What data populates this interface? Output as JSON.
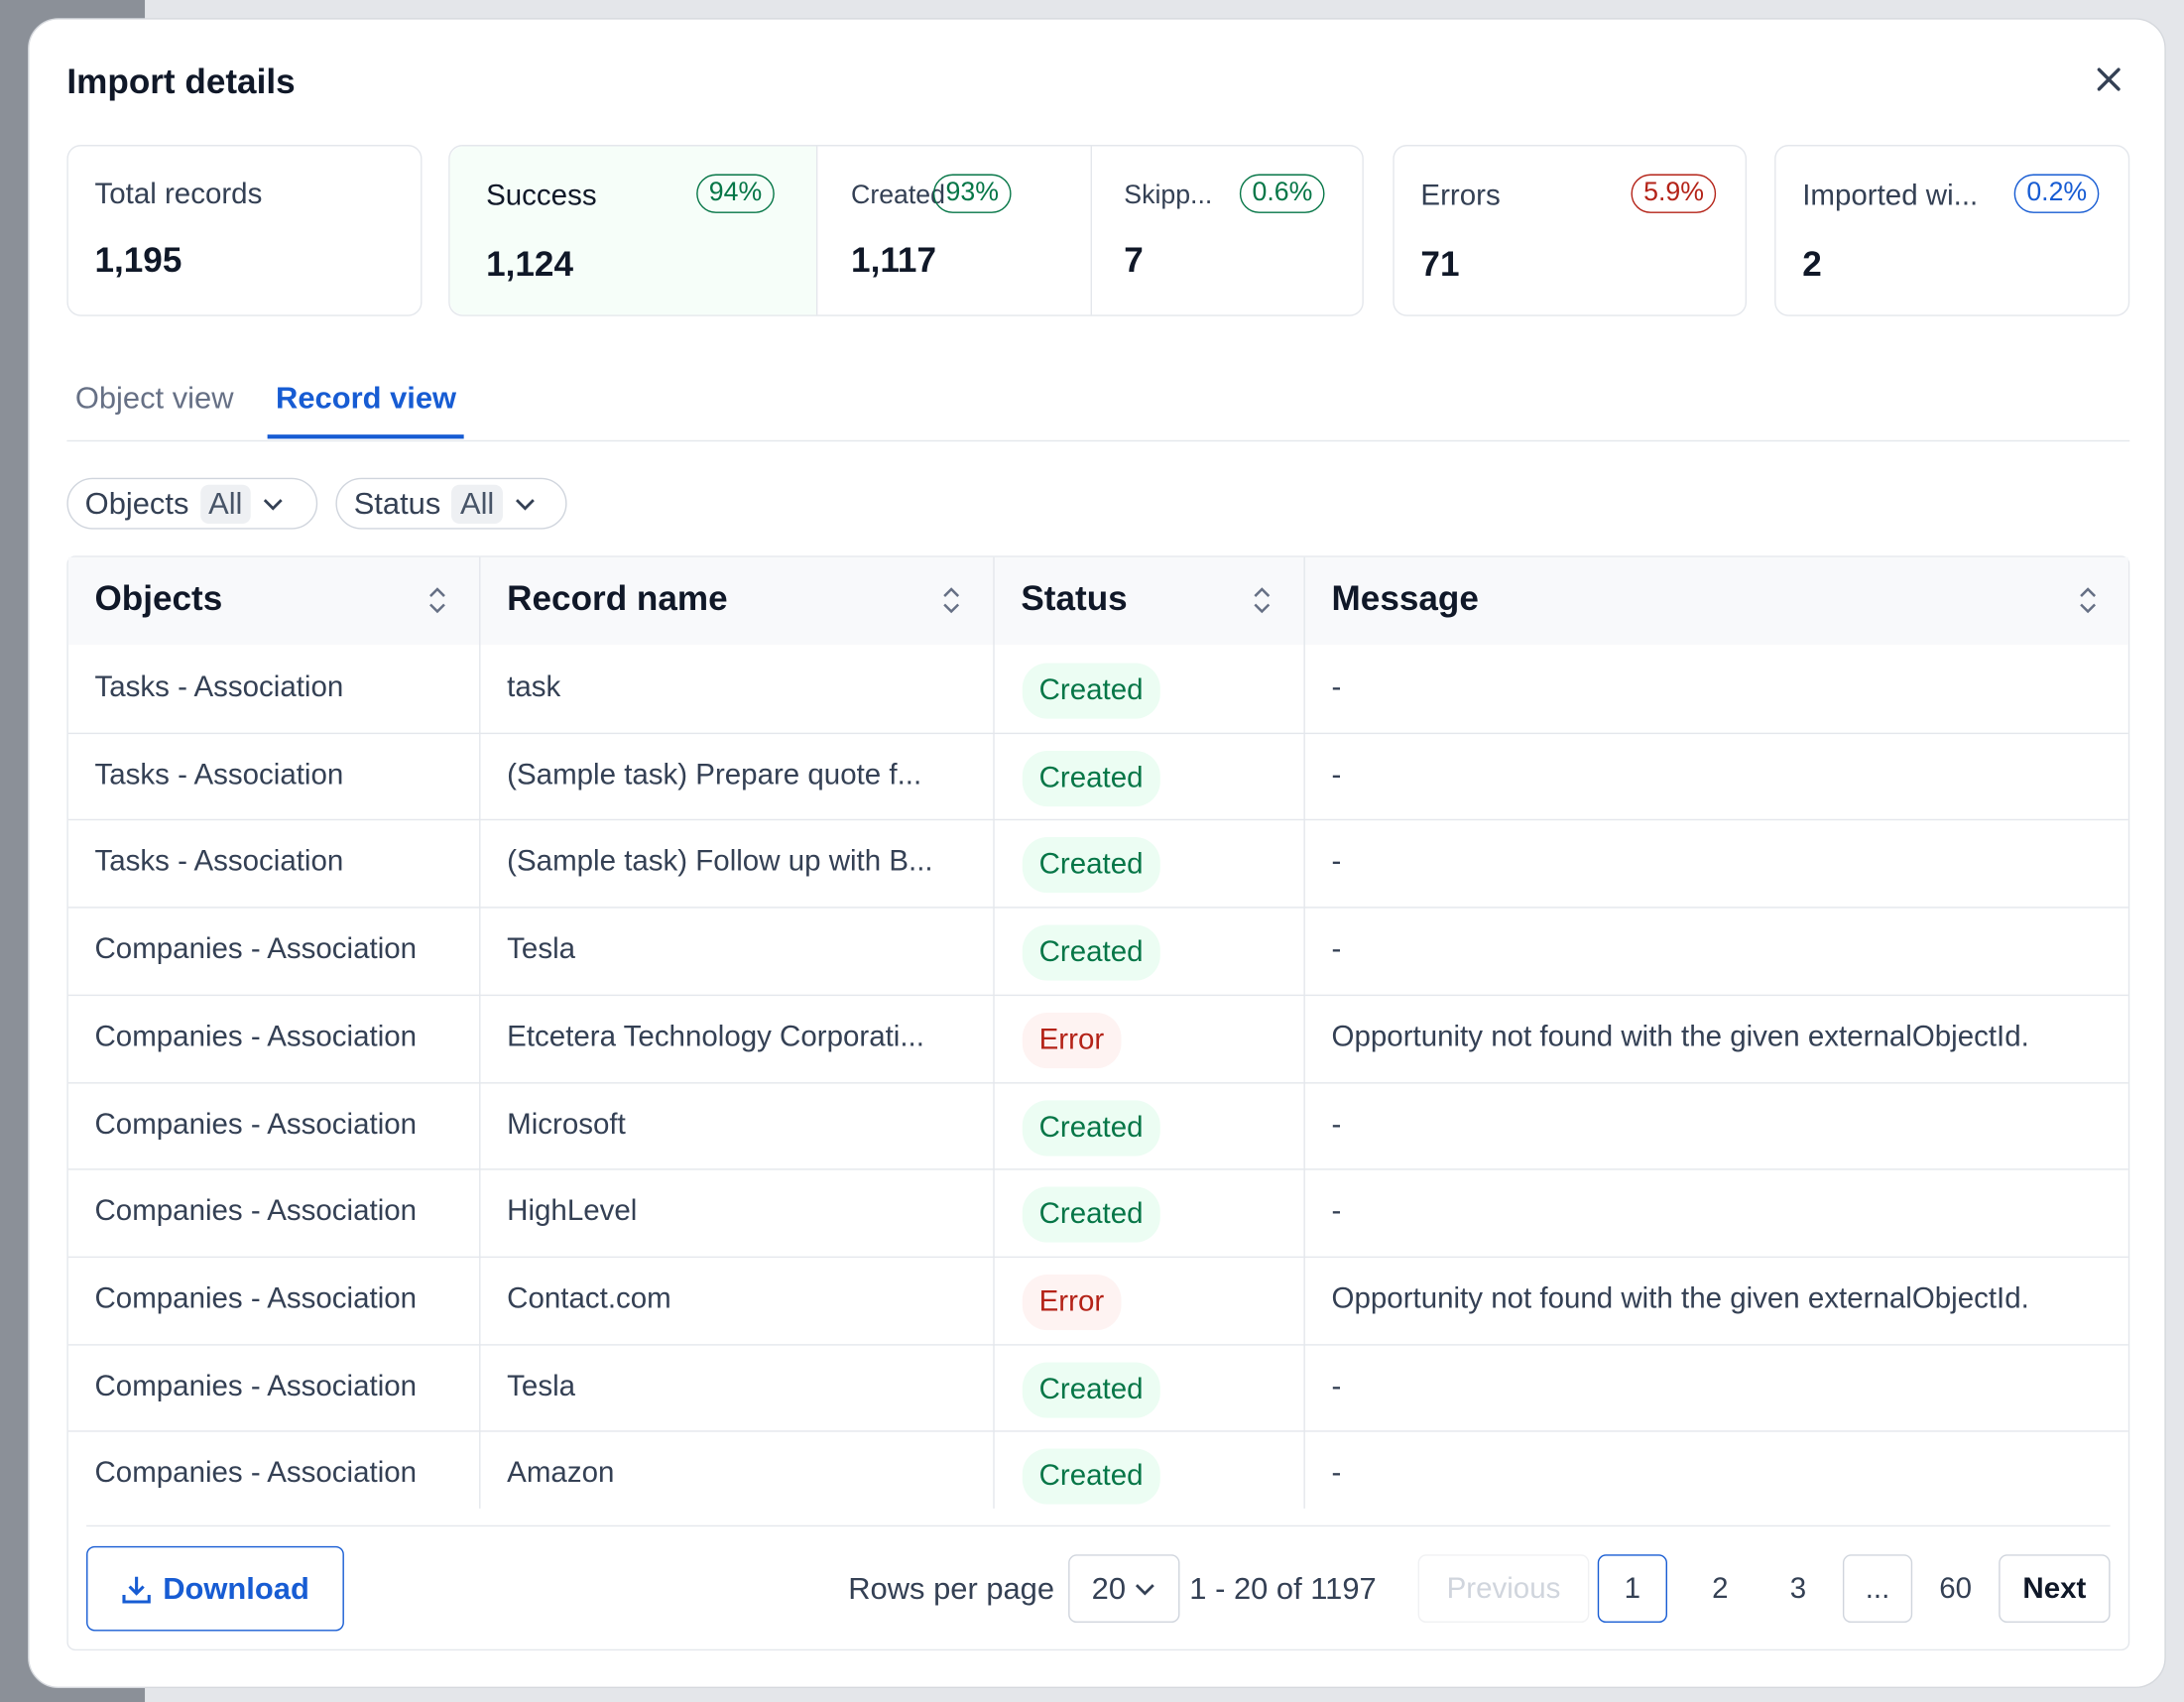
{
  "dialog": {
    "title": "Import details"
  },
  "stats": [
    {
      "label": "Total records",
      "value": "1,195"
    },
    {
      "label": "Success",
      "badge": "94%",
      "value": "1,124"
    },
    {
      "label": "Created",
      "badge": "93%",
      "value": "1,117"
    },
    {
      "label": "Skipp...",
      "badge": "0.6%",
      "value": "7"
    },
    {
      "label": "Errors",
      "badge": "5.9%",
      "value": "71"
    },
    {
      "label": "Imported wi...",
      "badge": "0.2%",
      "value": "2"
    }
  ],
  "tabs": [
    "Object view",
    "Record view"
  ],
  "filters": [
    {
      "label": "Objects",
      "value": "All"
    },
    {
      "label": "Status",
      "value": "All"
    }
  ],
  "table": {
    "columns": [
      "Objects",
      "Record name",
      "Status",
      "Message"
    ],
    "rows": [
      [
        "Tasks - Association",
        "task",
        "Created",
        "-"
      ],
      [
        "Tasks - Association",
        "(Sample task) Prepare quote f...",
        "Created",
        "-"
      ],
      [
        "Tasks - Association",
        "(Sample task) Follow up with B...",
        "Created",
        "-"
      ],
      [
        "Companies - Association",
        "Tesla",
        "Created",
        "-"
      ],
      [
        "Companies - Association",
        "Etcetera Technology Corporati...",
        "Error",
        "Opportunity not found with the given externalObjectId."
      ],
      [
        "Companies - Association",
        "Microsoft",
        "Created",
        "-"
      ],
      [
        "Companies - Association",
        "HighLevel",
        "Created",
        "-"
      ],
      [
        "Companies - Association",
        "Contact.com",
        "Error",
        "Opportunity not found with the given externalObjectId."
      ],
      [
        "Companies - Association",
        "Tesla",
        "Created",
        "-"
      ],
      [
        "Companies - Association",
        "Amazon",
        "Created",
        "-"
      ]
    ]
  },
  "footer": {
    "download": "Download",
    "rows_per_page_label": "Rows per page",
    "rows_per_page": "20",
    "range": "1 - 20 of 1197",
    "previous": "Previous",
    "pages": [
      "1",
      "2",
      "3",
      "...",
      "60"
    ],
    "next": "Next"
  }
}
